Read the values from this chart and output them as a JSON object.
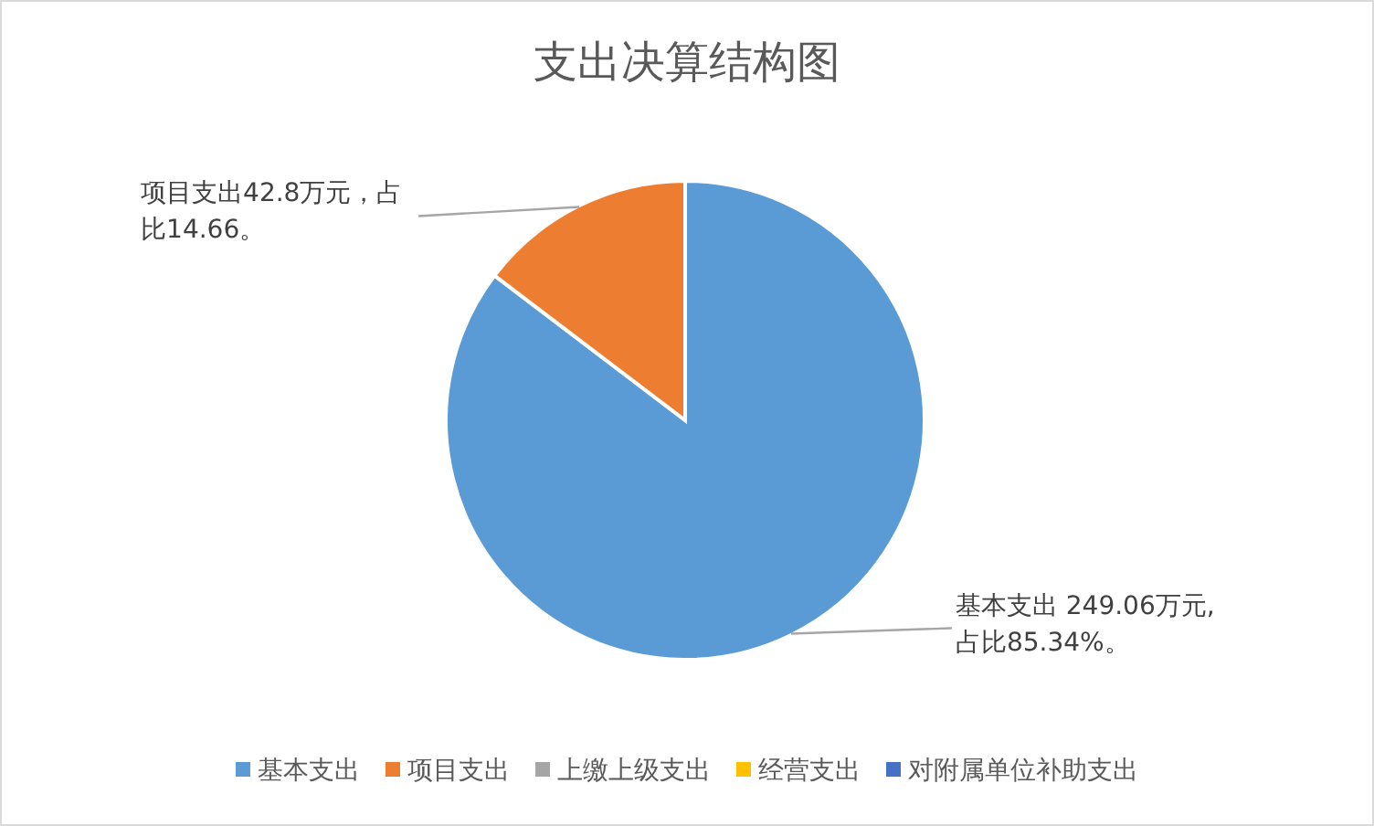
{
  "chart_data": {
    "type": "pie",
    "title": "支出决算结构图",
    "categories": [
      "基本支出",
      "项目支出",
      "上缴上级支出",
      "经营支出",
      "对附属单位补助支出"
    ],
    "values": [
      249.06,
      42.8,
      0,
      0,
      0
    ],
    "colors": [
      "#5b9bd5",
      "#ed7d31",
      "#a5a5a5",
      "#ffc000",
      "#4472c4"
    ],
    "value_labels": [
      "基本支出 249.06万元, 占比85.34%。",
      "项目支出42.8万元，占比14.66。",
      null,
      null,
      null
    ],
    "legend": "bottom"
  }
}
